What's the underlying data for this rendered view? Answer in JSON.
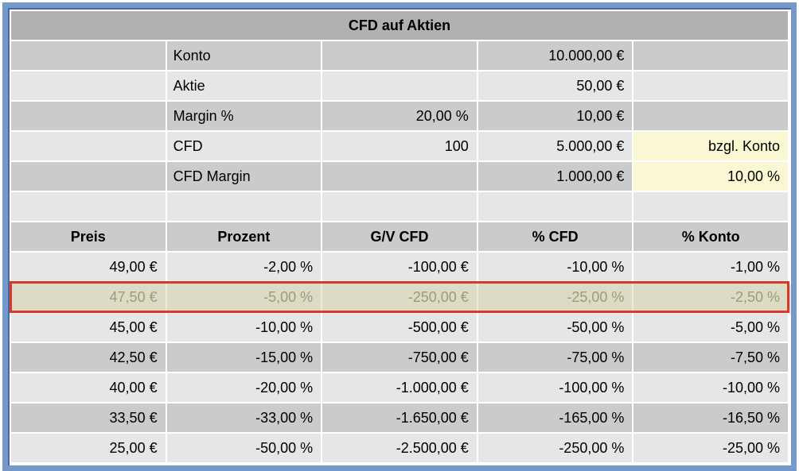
{
  "title": "CFD auf Aktien",
  "colors": {
    "frame_blue": "#7599cb",
    "frame_blue_dark": "#4a67a0",
    "title_bg": "#b1b1b1",
    "row_dark": "#cbcbcb",
    "row_light": "#e6e6e6",
    "note_yellow_bg": "#f9f8d3",
    "highlight_row_bg": "#dcdbc6",
    "highlight_row_text": "#9c9c74",
    "highlight_border_red": "#d53b2a"
  },
  "setup_rows": [
    {
      "label": "Konto",
      "col3": "",
      "col4": "10.000,00 €",
      "col5": ""
    },
    {
      "label": "Aktie",
      "col3": "",
      "col4": "50,00 €",
      "col5": ""
    },
    {
      "label": "Margin %",
      "col3": "20,00 %",
      "col4": "10,00 €",
      "col5": ""
    },
    {
      "label": "CFD",
      "col3": "100",
      "col4": "5.000,00 €",
      "col5": "bzgl. Konto"
    },
    {
      "label": "CFD Margin",
      "col3": "",
      "col4": "1.000,00 €",
      "col5": "10,00 %"
    }
  ],
  "table": {
    "headers": [
      "Preis",
      "Prozent",
      "G/V CFD",
      "% CFD",
      "% Konto"
    ],
    "rows": [
      {
        "cells": [
          "49,00 €",
          "-2,00 %",
          "-100,00 €",
          "-10,00 %",
          "-1,00 %"
        ],
        "highlighted": false
      },
      {
        "cells": [
          "47,50 €",
          "-5,00 %",
          "-250,00 €",
          "-25,00 %",
          "-2,50 %"
        ],
        "highlighted": true
      },
      {
        "cells": [
          "45,00 €",
          "-10,00 %",
          "-500,00 €",
          "-50,00 %",
          "-5,00 %"
        ],
        "highlighted": false
      },
      {
        "cells": [
          "42,50 €",
          "-15,00 %",
          "-750,00 €",
          "-75,00 %",
          "-7,50 %"
        ],
        "highlighted": false
      },
      {
        "cells": [
          "40,00 €",
          "-20,00 %",
          "-1.000,00 €",
          "-100,00 %",
          "-10,00 %"
        ],
        "highlighted": false
      },
      {
        "cells": [
          "33,50 €",
          "-33,00 %",
          "-1.650,00 €",
          "-165,00 %",
          "-16,50 %"
        ],
        "highlighted": false
      },
      {
        "cells": [
          "25,00 €",
          "-50,00 %",
          "-2.500,00 €",
          "-250,00 %",
          "-25,00 %"
        ],
        "highlighted": false
      }
    ]
  }
}
